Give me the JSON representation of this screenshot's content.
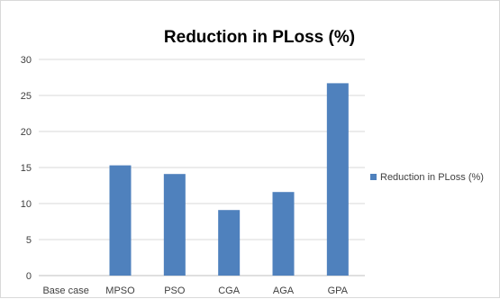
{
  "chart_data": {
    "type": "bar",
    "title": "Reduction in PLoss (%)",
    "xlabel": "",
    "ylabel": "",
    "categories": [
      "Base case",
      "MPSO",
      "PSO",
      "CGA",
      "AGA",
      "GPA"
    ],
    "series": [
      {
        "name": "Reduction in PLoss (%)",
        "values": [
          0,
          15.3,
          14.1,
          9.1,
          11.6,
          26.7
        ],
        "color": "#4f81bd"
      }
    ],
    "ylim": [
      0,
      30
    ],
    "yticks": [
      0,
      5,
      10,
      15,
      20,
      25,
      30
    ],
    "grid": true,
    "legend_position": "right"
  }
}
